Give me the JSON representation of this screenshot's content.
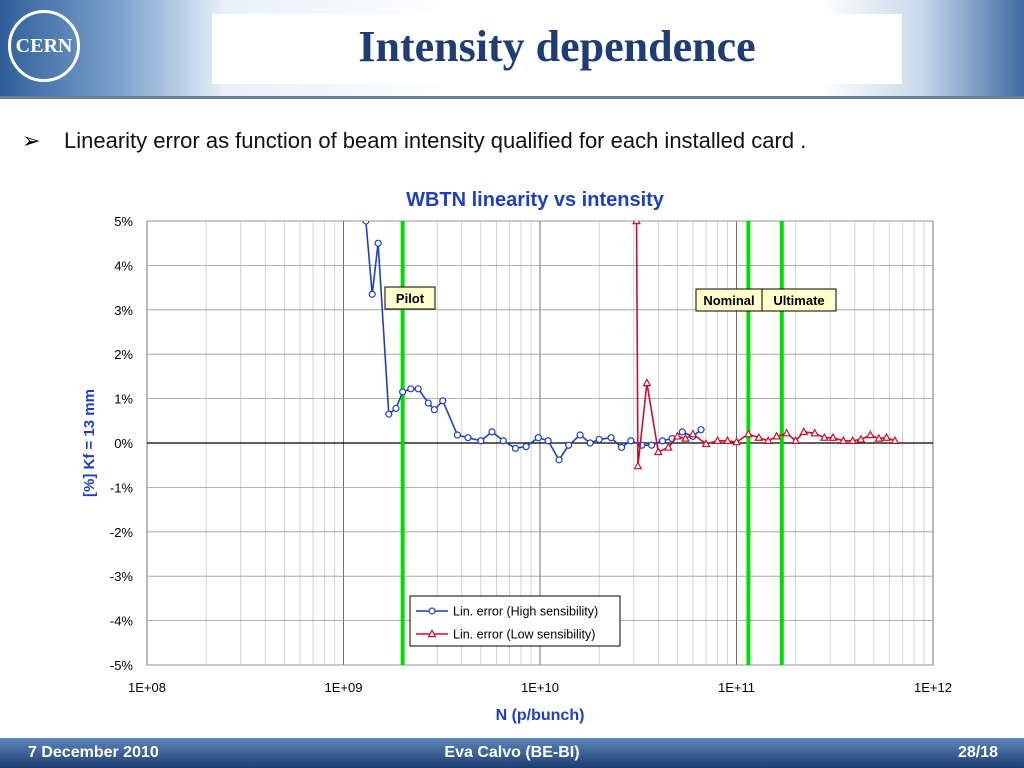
{
  "logo": {
    "text": "CERN"
  },
  "header": {
    "title": "Intensity dependence"
  },
  "bullet": {
    "text": "Linearity error as function of beam intensity qualified for each installed card ."
  },
  "footer": {
    "date": "7 December 2010",
    "author": "Eva Calvo (BE-BI)",
    "page": "28/18"
  },
  "chart_data": {
    "type": "line",
    "title": "WBTN linearity vs intensity",
    "xlabel": "N (p/bunch)",
    "ylabel": "[%] Kf = 13 mm",
    "xscale": "log",
    "xlim": [
      100000000.0,
      1000000000000.0
    ],
    "ylim": [
      -5,
      5
    ],
    "xticks": [
      100000000.0,
      1000000000.0,
      10000000000.0,
      100000000000.0,
      1000000000000.0
    ],
    "xtick_labels": [
      "1E+08",
      "1E+09",
      "1E+10",
      "1E+11",
      "1E+12"
    ],
    "yticks": [
      5,
      4,
      3,
      2,
      1,
      0,
      -1,
      -2,
      -3,
      -4,
      -5
    ],
    "ytick_labels": [
      "5%",
      "4%",
      "3%",
      "2%",
      "1%",
      "0%",
      "-1%",
      "-2%",
      "-3%",
      "-4%",
      "-5%"
    ],
    "grid": true,
    "legend_position": "bottom-center",
    "colors": {
      "high": "#1f3fbf",
      "low": "#c8102e",
      "marker": "#00dd00",
      "title": "#1f3fbf"
    },
    "series": [
      {
        "name": "Lin. error (High sensibility)",
        "marker": "circle",
        "x": [
          1300000000.0,
          1400000000.0,
          1500000000.0,
          1700000000.0,
          1850000000.0,
          2000000000.0,
          2200000000.0,
          2400000000.0,
          2700000000.0,
          2900000000.0,
          3200000000.0,
          3800000000.0,
          4300000000.0,
          5000000000.0,
          5700000000.0,
          6500000000.0,
          7500000000.0,
          8500000000.0,
          9800000000.0,
          11000000000.0,
          12500000000.0,
          14000000000.0,
          16000000000.0,
          18000000000.0,
          20000000000.0,
          23000000000.0,
          26000000000.0,
          29000000000.0,
          33000000000.0,
          37000000000.0,
          42000000000.0,
          47000000000.0,
          53000000000.0,
          60000000000.0,
          66000000000.0
        ],
        "y": [
          5.0,
          3.35,
          4.5,
          0.65,
          0.78,
          1.15,
          1.22,
          1.22,
          0.9,
          0.75,
          0.95,
          0.18,
          0.12,
          0.05,
          0.25,
          0.05,
          -0.12,
          -0.08,
          0.12,
          0.05,
          -0.38,
          -0.05,
          0.18,
          0.0,
          0.08,
          0.12,
          -0.1,
          0.05,
          -0.05,
          -0.05,
          0.05,
          0.1,
          0.25,
          0.15,
          0.3
        ]
      },
      {
        "name": "Lin. error (Low sensibility)",
        "marker": "triangle",
        "x": [
          31000000000.0,
          31500000000.0,
          35000000000.0,
          40000000000.0,
          45000000000.0,
          50000000000.0,
          55000000000.0,
          60000000000.0,
          70000000000.0,
          80000000000.0,
          90000000000.0,
          100000000000.0,
          115000000000.0,
          130000000000.0,
          145000000000.0,
          160000000000.0,
          180000000000.0,
          200000000000.0,
          220000000000.0,
          250000000000.0,
          280000000000.0,
          310000000000.0,
          350000000000.0,
          390000000000.0,
          430000000000.0,
          480000000000.0,
          530000000000.0,
          580000000000.0,
          640000000000.0
        ],
        "y": [
          5.0,
          -0.52,
          1.35,
          -0.2,
          -0.1,
          0.15,
          0.1,
          0.2,
          -0.02,
          0.05,
          0.05,
          0.02,
          0.2,
          0.12,
          0.05,
          0.15,
          0.22,
          0.05,
          0.25,
          0.22,
          0.12,
          0.12,
          0.05,
          0.05,
          0.08,
          0.18,
          0.1,
          0.12,
          0.05
        ]
      }
    ],
    "markers": [
      {
        "label": "Pilot",
        "x": 2000000000.0
      },
      {
        "label": "Nominal",
        "x": 115000000000.0
      },
      {
        "label": "Ultimate",
        "x": 170000000000.0
      }
    ]
  }
}
